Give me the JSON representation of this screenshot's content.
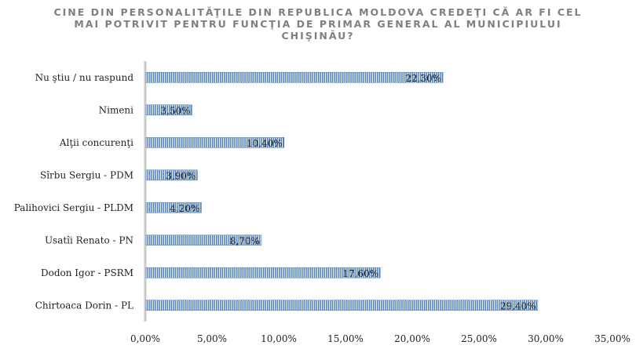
{
  "chart_data": {
    "type": "bar",
    "orientation": "horizontal",
    "title": "CINE DIN PERSONALITĂŢILE DIN REPUBLICA MOLDOVA CREDEŢI CĂ AR FI CEL MAI POTRIVIT PENTRU FUNCŢIA DE PRIMAR GENERAL AL MUNICIPIULUI CHIŞINĂU?",
    "categories": [
      "Nu ştiu / nu raspund",
      "Nimeni",
      "Alţii concurenţi",
      "Sîrbu Sergiu - PDM",
      "Palihovici Sergiu - PLDM",
      "Usatîi Renato - PN",
      "Dodon Igor - PSRM",
      "Chirtoaca Dorin - PL"
    ],
    "values": [
      22.3,
      3.5,
      10.4,
      3.9,
      4.2,
      8.7,
      17.6,
      29.4
    ],
    "data_labels": [
      "22,30%",
      "3,50%",
      "10,40%",
      "3,90%",
      "4,20%",
      "8,70%",
      "17,60%",
      "29,40%"
    ],
    "xlim": [
      0,
      35
    ],
    "xticks": [
      "0,00%",
      "5,00%",
      "10,00%",
      "15,00%",
      "20,00%",
      "25,00%",
      "30,00%",
      "35,00%"
    ],
    "xlabel": "",
    "ylabel": "",
    "grid": false,
    "bar_color": "#4f81bd",
    "bar_pattern": "vertical-stripes"
  }
}
